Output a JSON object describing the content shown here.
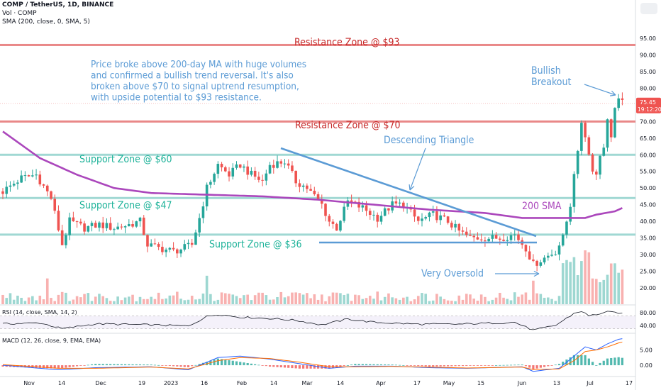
{
  "header": {
    "title": "COMP / TetherUS, 1D, BINANCE",
    "volume_label": "Vol · COMP",
    "sma_label": "SMA (200, close, 0, SMA, 5)"
  },
  "price_scale": {
    "ticks": [
      "95.00",
      "90.00",
      "85.00",
      "80.00",
      "75.00",
      "70.00",
      "65.00",
      "60.00",
      "55.00",
      "50.00",
      "45.00",
      "40.00",
      "35.00",
      "30.00",
      "25.00",
      "20.00"
    ],
    "current_price": "75.45",
    "countdown": "19:12:20"
  },
  "rsi": {
    "label": "RSI (14, close, SMA, 14, 2)",
    "ticks": [
      "80.00",
      "40.00"
    ]
  },
  "macd": {
    "label": "MACD (12, 26, close, 9, EMA, EMA)",
    "ticks": [
      "5.00",
      "0.00"
    ]
  },
  "x_ticks": [
    "Nov",
    "14",
    "Dec",
    "19",
    "2023",
    "16",
    "Feb",
    "14",
    "Mar",
    "14",
    "Apr",
    "17",
    "May",
    "15",
    "Jun",
    "13",
    "Jul",
    "17"
  ],
  "annotations": {
    "resistance_93": "Resistance Zone @ $93",
    "resistance_70": "Resistance Zone @ $70",
    "support_60": "Support Zone @ $60",
    "support_47": "Support Zone @ $47",
    "support_36": "Support Zone @ $36",
    "descending_triangle": "Descending Triangle",
    "sma200": "200 SMA",
    "bullish_breakout_1": "Bullish",
    "bullish_breakout_2": "Breakout",
    "very_oversold": "Very Oversold",
    "summary_1": "Price broke above 200-day MA with huge volumes",
    "summary_2": "and confirmed a bullish trend reversal. It's also",
    "summary_3": "broken above $70 to signal uptrend resumption,",
    "summary_4": "with upside potential to $93 resistance."
  },
  "colors": {
    "up": "#26a69a",
    "down": "#ef5350",
    "resistance": "#e57373",
    "support": "#80cbc4",
    "sma": "#ab47bc",
    "annotation_blue": "#5b9bd5",
    "resistance_text": "#c62828",
    "support_text": "#1fb39a"
  },
  "chart_data": {
    "type": "candlestick",
    "y_range": [
      17,
      98
    ],
    "levels": {
      "resistance": [
        93,
        70
      ],
      "support": [
        60,
        47,
        36
      ]
    },
    "price_path": [
      [
        0,
        49
      ],
      [
        5,
        53
      ],
      [
        9,
        54
      ],
      [
        13,
        47
      ],
      [
        16,
        33
      ],
      [
        18,
        40
      ],
      [
        22,
        38
      ],
      [
        26,
        39
      ],
      [
        30,
        38
      ],
      [
        34,
        39
      ],
      [
        37,
        40
      ],
      [
        39,
        33
      ],
      [
        42,
        32
      ],
      [
        46,
        31
      ],
      [
        49,
        32
      ],
      [
        51,
        33
      ],
      [
        53,
        41
      ],
      [
        55,
        50
      ],
      [
        58,
        57
      ],
      [
        61,
        54
      ],
      [
        64,
        57
      ],
      [
        67,
        54
      ],
      [
        70,
        52
      ],
      [
        72,
        57
      ],
      [
        76,
        58
      ],
      [
        79,
        52
      ],
      [
        82,
        50
      ],
      [
        86,
        45
      ],
      [
        88,
        40
      ],
      [
        90,
        38
      ],
      [
        93,
        46
      ],
      [
        97,
        44
      ],
      [
        101,
        41
      ],
      [
        105,
        45
      ],
      [
        108,
        45
      ],
      [
        112,
        40
      ],
      [
        116,
        42
      ],
      [
        120,
        40
      ],
      [
        123,
        37
      ],
      [
        126,
        35
      ],
      [
        130,
        35
      ],
      [
        134,
        35
      ],
      [
        138,
        36
      ],
      [
        141,
        32
      ],
      [
        143,
        27
      ],
      [
        146,
        29
      ],
      [
        149,
        31
      ],
      [
        151,
        35
      ],
      [
        153,
        45
      ],
      [
        154,
        55
      ],
      [
        155,
        60
      ],
      [
        156,
        70
      ],
      [
        157,
        66
      ],
      [
        158,
        60
      ],
      [
        159,
        56
      ],
      [
        160,
        54
      ],
      [
        161,
        60
      ],
      [
        162,
        63
      ],
      [
        163,
        70
      ],
      [
        164,
        66
      ],
      [
        165,
        74
      ],
      [
        166,
        76
      ],
      [
        167,
        75.45
      ]
    ],
    "sma200_path": [
      [
        0,
        67
      ],
      [
        10,
        59
      ],
      [
        20,
        54
      ],
      [
        30,
        50
      ],
      [
        40,
        48.5
      ],
      [
        55,
        48
      ],
      [
        70,
        47.5
      ],
      [
        85,
        46.5
      ],
      [
        100,
        45
      ],
      [
        115,
        43.5
      ],
      [
        130,
        42.5
      ],
      [
        140,
        41
      ],
      [
        150,
        41
      ],
      [
        157,
        41
      ],
      [
        160,
        42
      ],
      [
        165,
        43
      ],
      [
        167,
        44
      ]
    ],
    "rsi": {
      "range": [
        20,
        100
      ],
      "bands": [
        70,
        30
      ],
      "path": [
        [
          0,
          45
        ],
        [
          10,
          48
        ],
        [
          16,
          30
        ],
        [
          25,
          45
        ],
        [
          40,
          42
        ],
        [
          50,
          38
        ],
        [
          55,
          68
        ],
        [
          58,
          75
        ],
        [
          64,
          66
        ],
        [
          72,
          62
        ],
        [
          79,
          56
        ],
        [
          86,
          42
        ],
        [
          93,
          60
        ],
        [
          100,
          50
        ],
        [
          112,
          44
        ],
        [
          123,
          44
        ],
        [
          138,
          50
        ],
        [
          141,
          35
        ],
        [
          143,
          25
        ],
        [
          149,
          40
        ],
        [
          154,
          78
        ],
        [
          156,
          85
        ],
        [
          158,
          70
        ],
        [
          163,
          82
        ],
        [
          166,
          80
        ],
        [
          167,
          76
        ]
      ]
    },
    "macd": {
      "range": [
        -3,
        10
      ],
      "macd_path": [
        [
          0,
          0
        ],
        [
          15,
          -1.5
        ],
        [
          25,
          -0.8
        ],
        [
          40,
          -0.5
        ],
        [
          50,
          -1.5
        ],
        [
          58,
          2.5
        ],
        [
          64,
          3
        ],
        [
          72,
          2
        ],
        [
          80,
          0.5
        ],
        [
          88,
          -1
        ],
        [
          95,
          -0.3
        ],
        [
          105,
          -0.3
        ],
        [
          115,
          -0.8
        ],
        [
          125,
          -1
        ],
        [
          140,
          -0.5
        ],
        [
          143,
          -2
        ],
        [
          150,
          -1
        ],
        [
          154,
          3
        ],
        [
          157,
          6
        ],
        [
          160,
          5
        ],
        [
          163,
          7
        ],
        [
          166,
          8.5
        ],
        [
          167,
          8.7
        ]
      ],
      "signal_path": [
        [
          0,
          0.2
        ],
        [
          15,
          -1
        ],
        [
          25,
          -1
        ],
        [
          40,
          -0.6
        ],
        [
          50,
          -1.2
        ],
        [
          58,
          1.5
        ],
        [
          64,
          2.5
        ],
        [
          72,
          2.2
        ],
        [
          80,
          1
        ],
        [
          88,
          -0.5
        ],
        [
          95,
          -0.5
        ],
        [
          105,
          -0.4
        ],
        [
          115,
          -0.6
        ],
        [
          125,
          -0.9
        ],
        [
          140,
          -0.6
        ],
        [
          143,
          -1.4
        ],
        [
          150,
          -1.2
        ],
        [
          154,
          1.5
        ],
        [
          157,
          4.5
        ],
        [
          160,
          5
        ],
        [
          163,
          6
        ],
        [
          166,
          7.3
        ],
        [
          167,
          7.6
        ]
      ]
    },
    "bar_count": 168
  }
}
